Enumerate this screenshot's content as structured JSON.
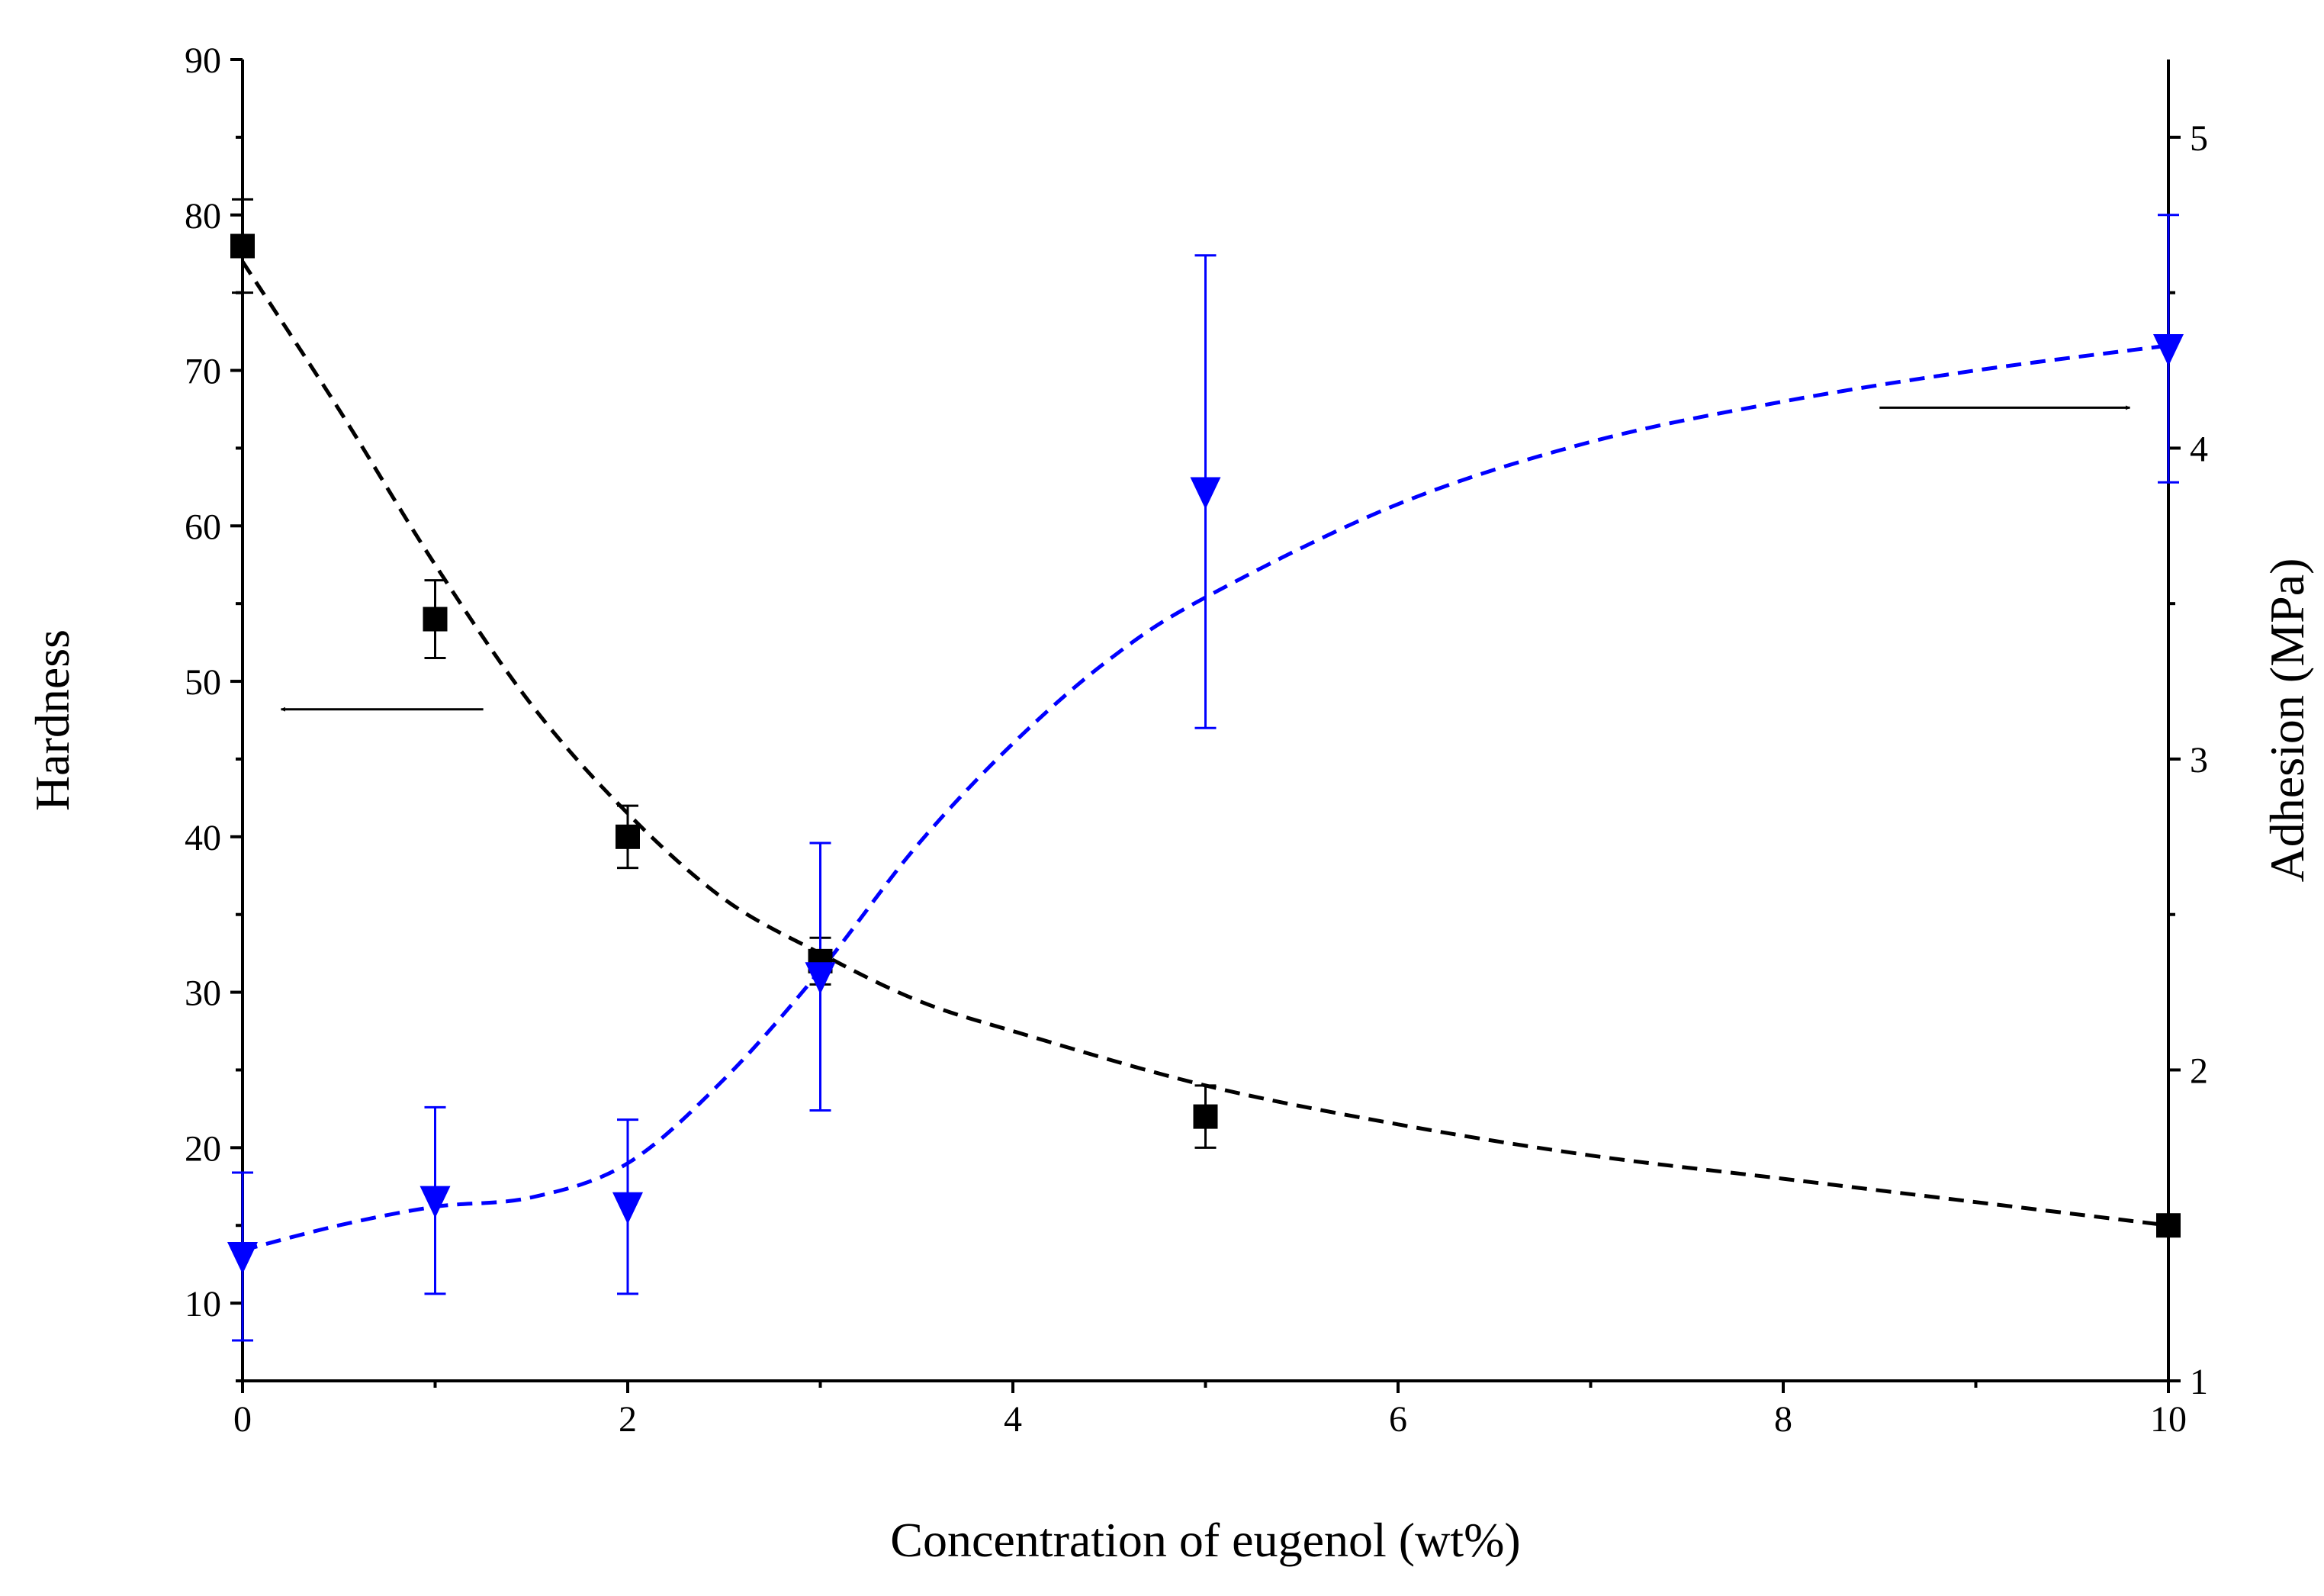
{
  "chart_data": {
    "type": "scatter",
    "title": "",
    "xlabel": "Concentration of eugenol (wt%)",
    "ylabel_left": "Hardness",
    "ylabel_right": "Adhesion (MPa)",
    "xlim": [
      0,
      10
    ],
    "ylim_left": [
      5,
      90
    ],
    "ylim_right": [
      1,
      5.25
    ],
    "x_ticks": [
      0,
      2,
      4,
      6,
      8,
      10
    ],
    "y_left_ticks": [
      10,
      20,
      30,
      40,
      50,
      60,
      70,
      80,
      90
    ],
    "y_right_ticks": [
      1,
      2,
      3,
      4,
      5
    ],
    "grid": false,
    "series": [
      {
        "name": "Hardness",
        "axis": "left",
        "marker": "square",
        "color": "#000000",
        "x": [
          0,
          1,
          2,
          3,
          5,
          10
        ],
        "y": [
          78,
          54,
          40,
          32,
          22,
          15
        ],
        "err": [
          3,
          2.5,
          2,
          1.5,
          2,
          0
        ],
        "fit_curve": [
          [
            0,
            77
          ],
          [
            0.5,
            67.5
          ],
          [
            1,
            57.5
          ],
          [
            1.5,
            48.5
          ],
          [
            2,
            41.5
          ],
          [
            2.5,
            36
          ],
          [
            3,
            32.5
          ],
          [
            3.5,
            29.5
          ],
          [
            4,
            27.5
          ],
          [
            5,
            24
          ],
          [
            6,
            21.5
          ],
          [
            7,
            19.5
          ],
          [
            8,
            18
          ],
          [
            9,
            16.5
          ],
          [
            10,
            15
          ]
        ]
      },
      {
        "name": "Adhesion",
        "axis": "right",
        "marker": "triangle-down",
        "color": "#0000ff",
        "x": [
          0,
          1,
          2,
          3,
          5,
          10
        ],
        "y": [
          1.4,
          1.58,
          1.56,
          2.3,
          3.86,
          4.32
        ],
        "err": [
          0.27,
          0.3,
          0.28,
          0.43,
          0.76,
          0.43
        ],
        "fit_curve": [
          [
            0,
            1.42
          ],
          [
            0.5,
            1.5
          ],
          [
            1,
            1.56
          ],
          [
            1.5,
            1.59
          ],
          [
            2,
            1.7
          ],
          [
            2.5,
            1.97
          ],
          [
            3,
            2.32
          ],
          [
            3.5,
            2.72
          ],
          [
            4,
            3.05
          ],
          [
            4.5,
            3.32
          ],
          [
            5,
            3.52
          ],
          [
            6,
            3.82
          ],
          [
            7,
            4.02
          ],
          [
            8,
            4.15
          ],
          [
            9,
            4.25
          ],
          [
            10,
            4.33
          ]
        ]
      }
    ],
    "annotations": [
      {
        "type": "arrow",
        "direction": "left",
        "axis": "left",
        "x_from": 1.25,
        "x_to": 0.2,
        "y": 48.2
      },
      {
        "type": "arrow",
        "direction": "right",
        "axis": "right",
        "x_from": 8.5,
        "x_to": 9.8,
        "y": 4.13
      }
    ]
  }
}
